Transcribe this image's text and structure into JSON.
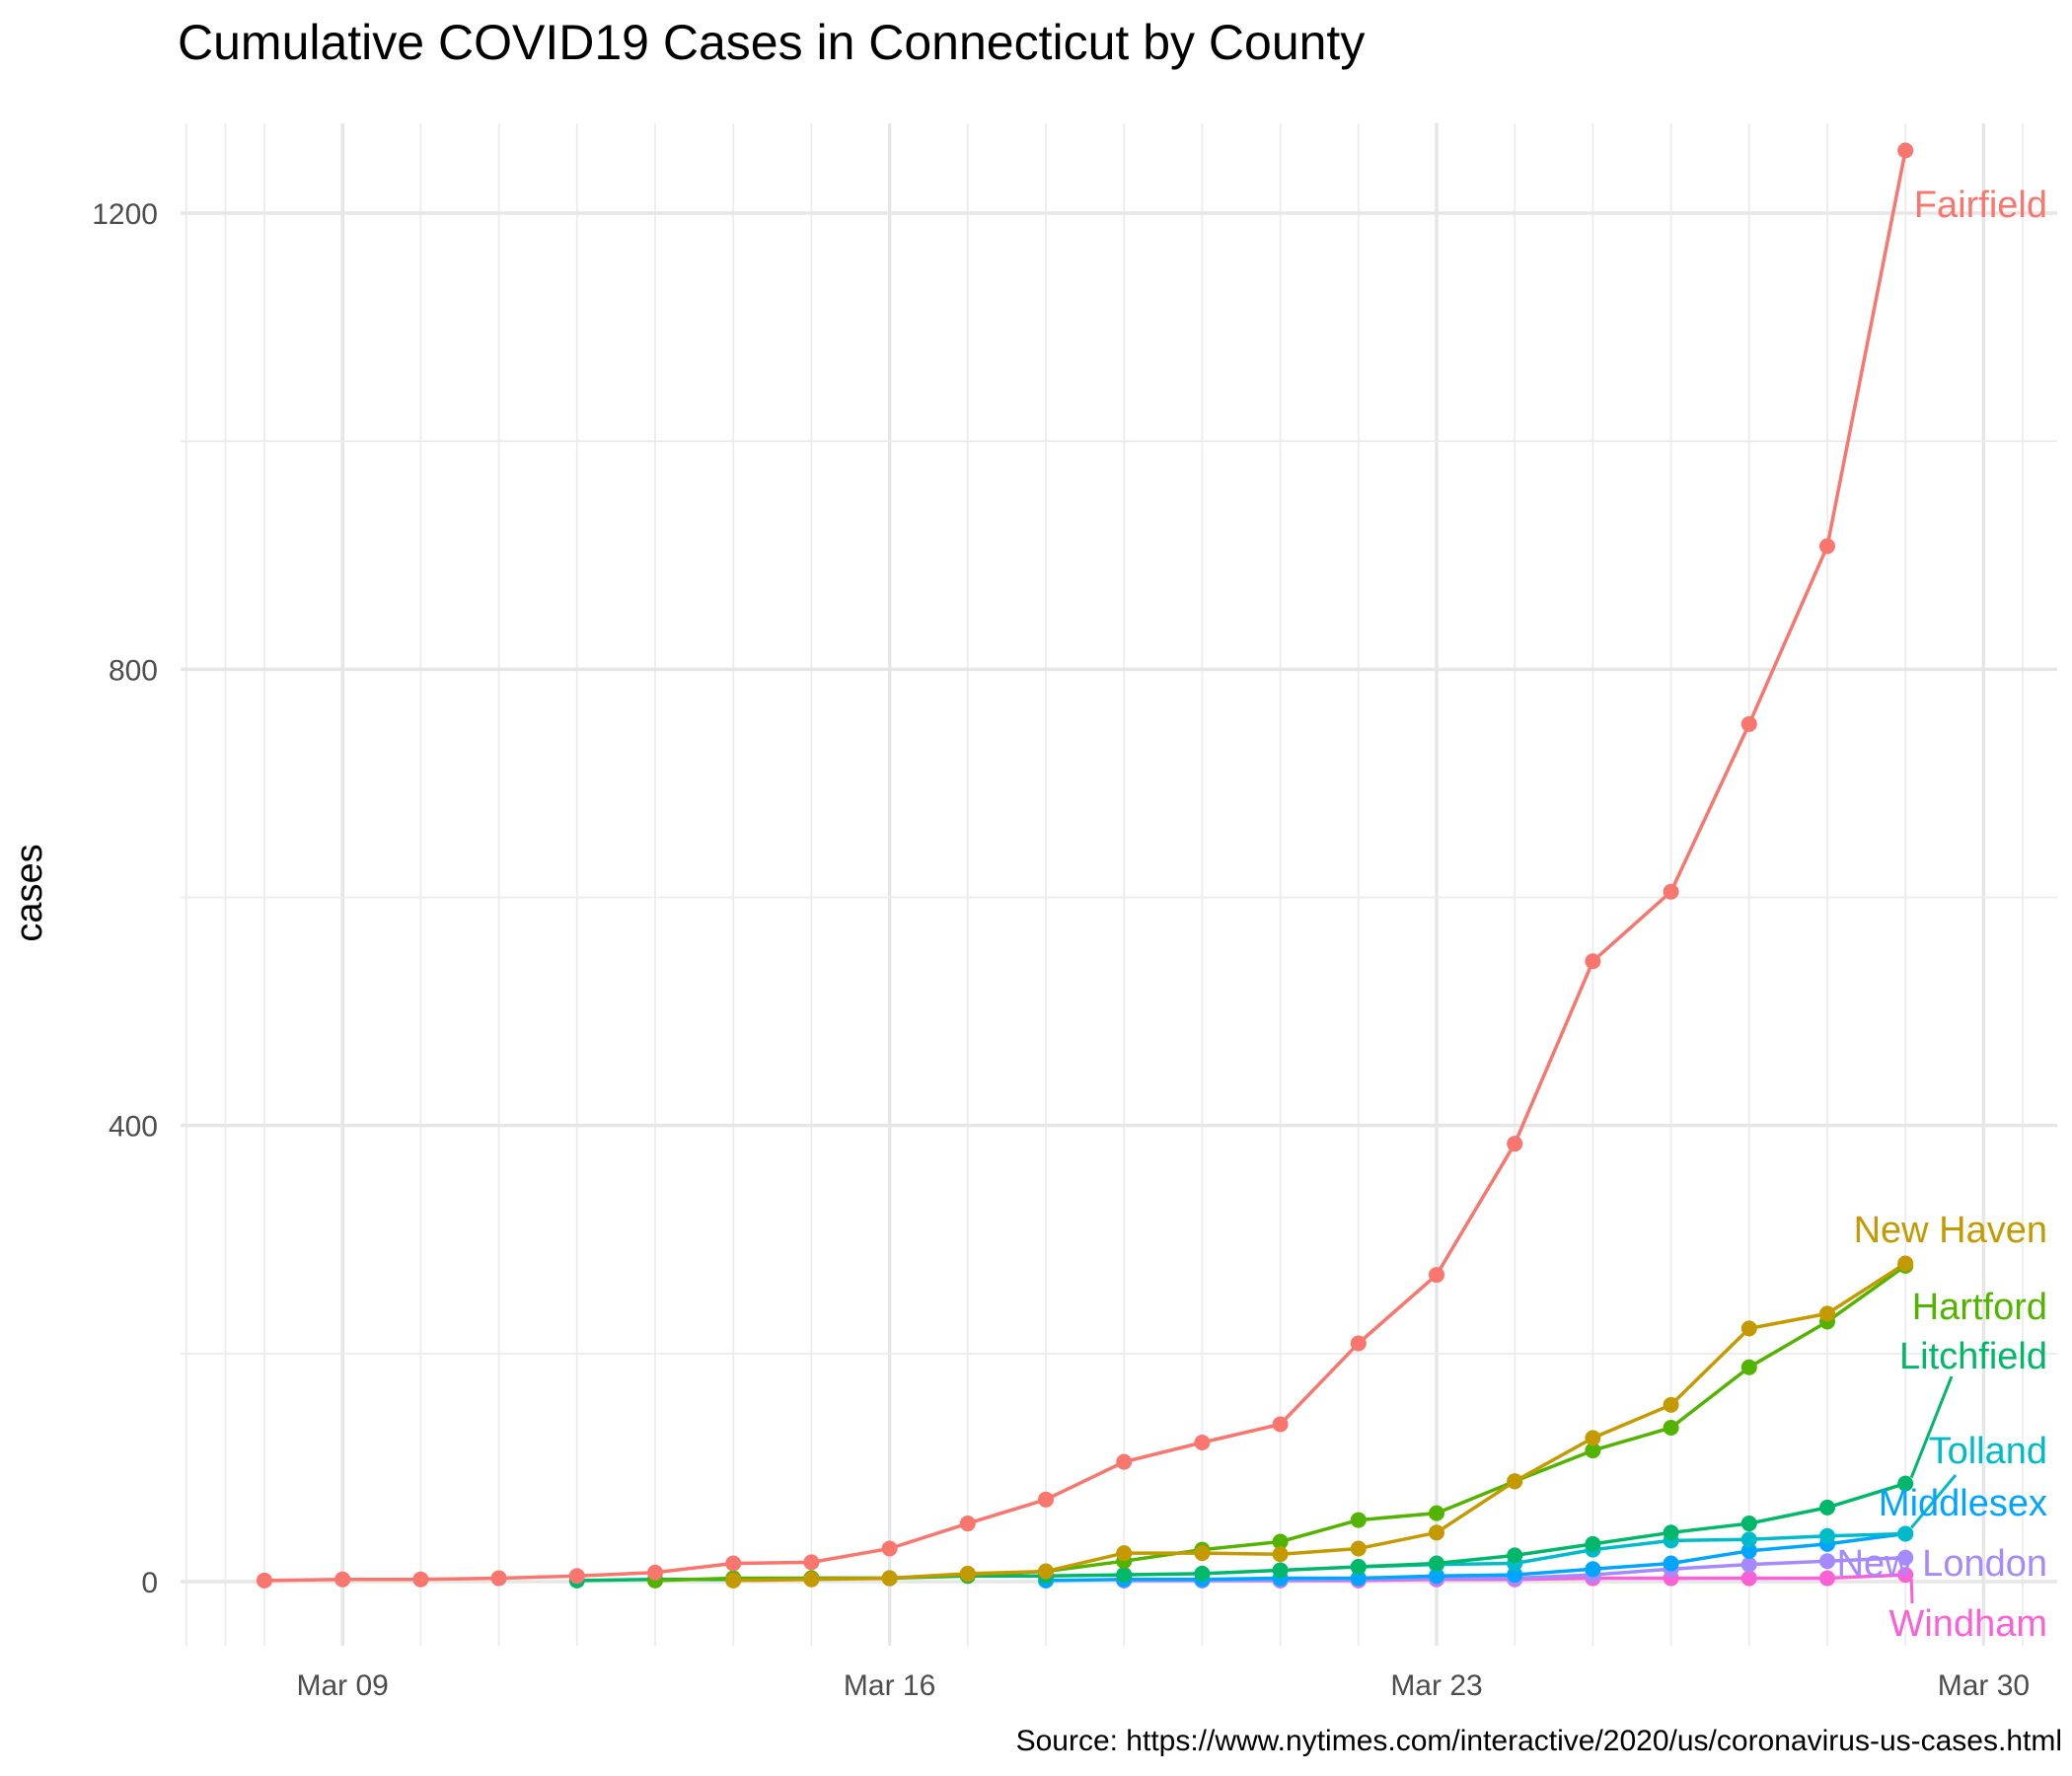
{
  "chart_data": {
    "type": "line",
    "title": "Cumulative COVID19 Cases in Connecticut by County",
    "caption": "Source: https://www.nytimes.com/interactive/2020/us/coronavirus-us-cases.html",
    "xlabel": "",
    "ylabel": "cases",
    "x": [
      "Mar 08",
      "Mar 09",
      "Mar 10",
      "Mar 11",
      "Mar 12",
      "Mar 13",
      "Mar 14",
      "Mar 15",
      "Mar 16",
      "Mar 17",
      "Mar 18",
      "Mar 19",
      "Mar 20",
      "Mar 21",
      "Mar 22",
      "Mar 23",
      "Mar 24",
      "Mar 25",
      "Mar 26",
      "Mar 27",
      "Mar 28",
      "Mar 29"
    ],
    "x_ticks": [
      "Mar 09",
      "Mar 16",
      "Mar 23",
      "Mar 30"
    ],
    "y_ticks": [
      0,
      400,
      800,
      1200
    ],
    "ylim": [
      -60,
      1310
    ],
    "grid": true,
    "legend": "none (direct labels at line ends)",
    "series": [
      {
        "name": "Fairfield",
        "color": "#F8766D",
        "values": [
          1,
          2,
          2,
          3,
          5,
          8,
          16,
          17,
          29,
          51,
          72,
          105,
          122,
          138,
          209,
          269,
          384,
          544,
          605,
          752,
          908,
          1255
        ]
      },
      {
        "name": "New Haven",
        "color": "#C49A00",
        "values": [
          null,
          null,
          null,
          null,
          null,
          null,
          1,
          2,
          3,
          7,
          9,
          25,
          25,
          24,
          29,
          43,
          88,
          126,
          155,
          222,
          235,
          279
        ]
      },
      {
        "name": "Hartford",
        "color": "#53B400",
        "values": [
          null,
          null,
          null,
          null,
          null,
          1,
          3,
          3,
          3,
          6,
          9,
          18,
          28,
          35,
          54,
          60,
          88,
          115,
          135,
          188,
          228,
          277
        ]
      },
      {
        "name": "Litchfield",
        "color": "#00B76A",
        "values": [
          null,
          null,
          null,
          null,
          1,
          2,
          2,
          3,
          3,
          5,
          5,
          6,
          7,
          10,
          13,
          16,
          23,
          33,
          43,
          51,
          65,
          86
        ]
      },
      {
        "name": "Tolland",
        "color": "#00BCCB",
        "values": [
          null,
          null,
          null,
          null,
          null,
          null,
          null,
          null,
          null,
          null,
          null,
          null,
          null,
          null,
          13,
          15,
          16,
          28,
          36,
          37,
          40,
          42
        ]
      },
      {
        "name": "Middlesex",
        "color": "#00A5FF",
        "values": [
          null,
          null,
          null,
          null,
          null,
          null,
          null,
          null,
          null,
          null,
          1,
          2,
          2,
          3,
          3,
          5,
          6,
          11,
          16,
          27,
          33,
          42
        ]
      },
      {
        "name": "New London",
        "color": "#A58AFF",
        "values": [
          null,
          null,
          null,
          null,
          null,
          null,
          null,
          null,
          null,
          null,
          null,
          1,
          1,
          1,
          2,
          3,
          3,
          6,
          11,
          15,
          18,
          21
        ]
      },
      {
        "name": "Windham",
        "color": "#FB61D7",
        "values": [
          null,
          null,
          null,
          null,
          null,
          null,
          null,
          null,
          null,
          null,
          null,
          1,
          1,
          1,
          1,
          2,
          2,
          3,
          3,
          3,
          3,
          6
        ]
      }
    ]
  }
}
